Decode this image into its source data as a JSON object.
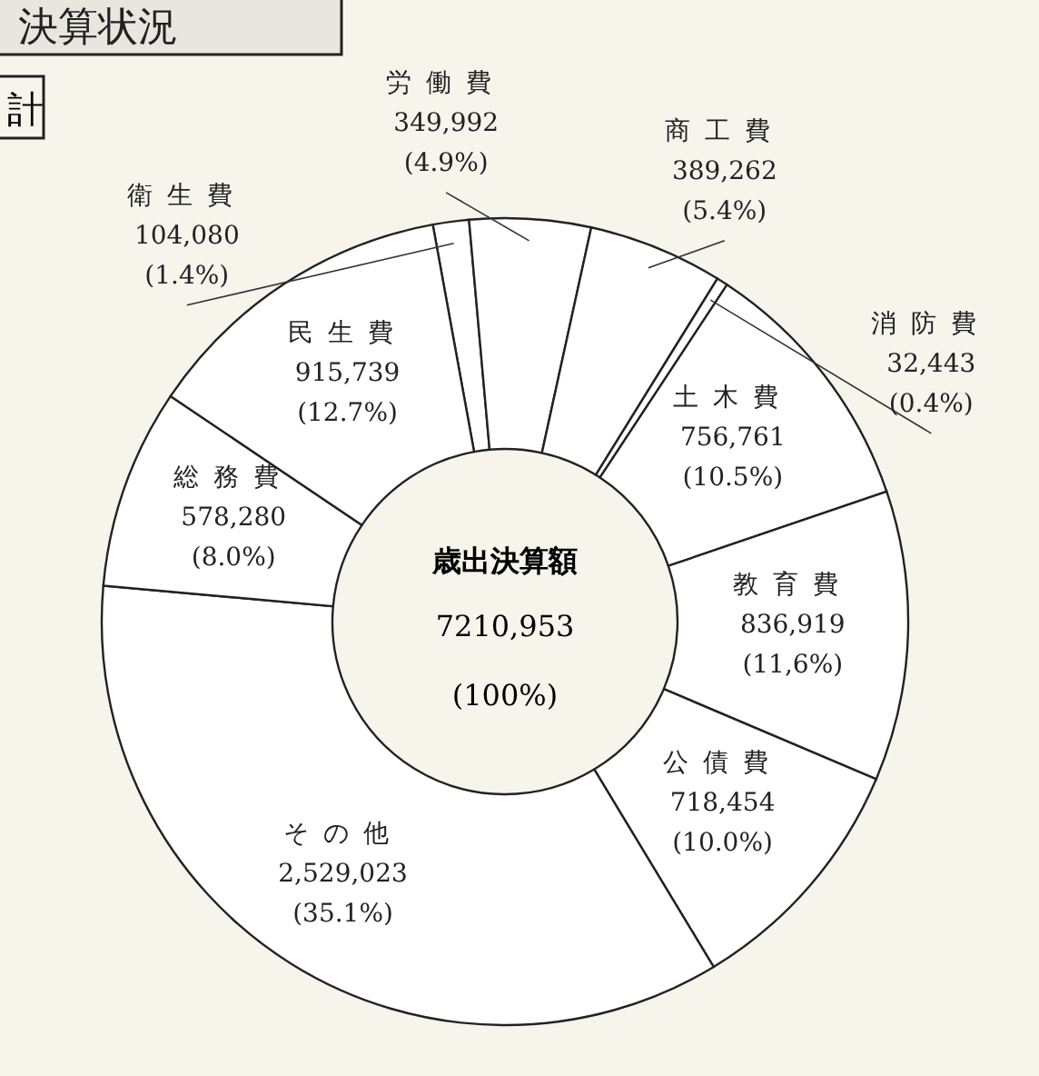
{
  "chart_data": {
    "type": "donut",
    "title": "決算状況",
    "categories": [
      "衛生費",
      "労働費",
      "商工費",
      "消防費",
      "土木費",
      "教育費",
      "公債費",
      "その他",
      "総務費",
      "民生費"
    ],
    "values": [
      104080,
      349992,
      389262,
      32443,
      756761,
      836919,
      718454,
      2529023,
      578280,
      915739
    ],
    "colors": [
      "#ffffff",
      "#ffffff",
      "#ffffff",
      "#ffffff",
      "#ffffff",
      "#ffffff",
      "#ffffff",
      "#ffffff",
      "#ffffff",
      "#ffffff"
    ],
    "value_labels": [
      "104,080\n(1.4%)",
      "349,992\n(4.9%)",
      "389,262\n(5.4%)",
      "32,443\n(0.4%)",
      "756,761\n(10.5%)",
      "836,919\n(11,6%)",
      "718,454\n(10.0%)",
      "2,529,023\n(35.1%)",
      "578,280\n(8.0%)",
      "915,739\n(12.7%)"
    ],
    "annotations": [
      "歳出決算額",
      "7210,953",
      "(100%)",
      "計"
    ]
  }
}
